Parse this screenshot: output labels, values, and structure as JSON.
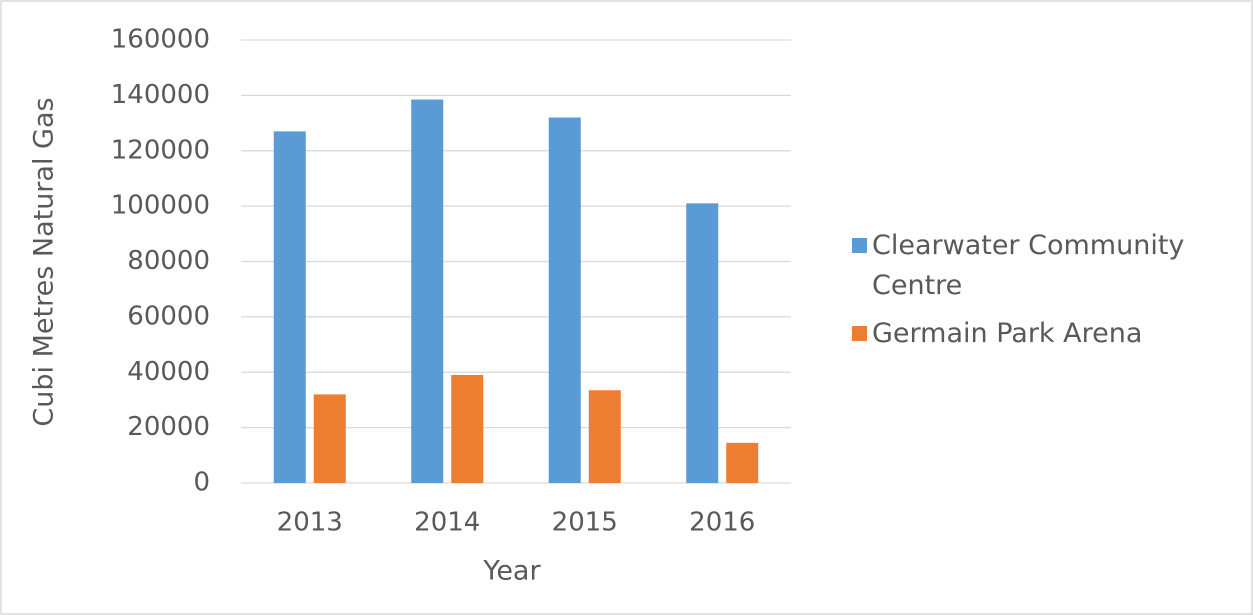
{
  "chart_data": {
    "type": "bar",
    "y_label": "Cubi Metres Natural Gas",
    "x_label": "Year",
    "categories": [
      "2013",
      "2014",
      "2015",
      "2016"
    ],
    "series": [
      {
        "name": "Clearwater Community Centre",
        "color": "#5b9bd5",
        "values": [
          127000,
          138500,
          132000,
          101000
        ]
      },
      {
        "name": "Germain Park Arena",
        "color": "#ed7d31",
        "values": [
          32000,
          39000,
          33500,
          14500
        ]
      }
    ],
    "ylim": [
      0,
      160000
    ],
    "yticks": [
      0,
      20000,
      40000,
      60000,
      80000,
      100000,
      120000,
      140000,
      160000
    ],
    "grid": true,
    "legend": "right"
  }
}
